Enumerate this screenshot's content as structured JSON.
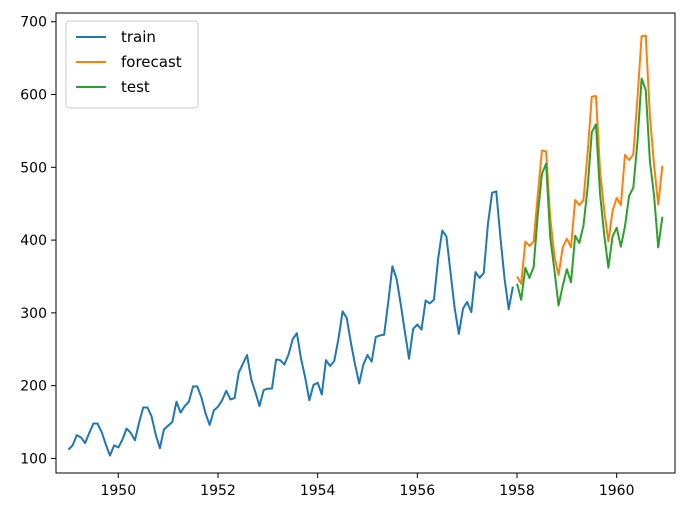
{
  "chart_data": {
    "type": "line",
    "title": "",
    "xlabel": "",
    "ylabel": "",
    "xlim": [
      1948.75,
      1961.17
    ],
    "ylim": [
      80,
      712
    ],
    "xticks": [
      1950,
      1952,
      1954,
      1956,
      1958,
      1960
    ],
    "xtick_labels": [
      "1950",
      "1952",
      "1954",
      "1956",
      "1958",
      "1960"
    ],
    "yticks": [
      100,
      200,
      300,
      400,
      500,
      600,
      700
    ],
    "ytick_labels": [
      "100",
      "200",
      "300",
      "400",
      "500",
      "600",
      "700"
    ],
    "grid": false,
    "legend_position": "top-left",
    "series": [
      {
        "name": "train",
        "color": "#1f77b4",
        "x_start": 1949.0,
        "x_step": 0.0833333,
        "values": [
          112,
          118,
          132,
          129,
          121,
          135,
          148,
          148,
          136,
          119,
          104,
          118,
          115,
          126,
          141,
          135,
          125,
          149,
          170,
          170,
          158,
          133,
          114,
          140,
          145,
          150,
          178,
          163,
          172,
          178,
          199,
          199,
          184,
          162,
          146,
          166,
          171,
          180,
          193,
          181,
          183,
          218,
          230,
          242,
          209,
          191,
          172,
          194,
          196,
          196,
          236,
          235,
          229,
          243,
          264,
          272,
          237,
          211,
          180,
          201,
          204,
          188,
          235,
          227,
          234,
          264,
          302,
          293,
          259,
          229,
          203,
          229,
          242,
          233,
          267,
          269,
          270,
          315,
          364,
          347,
          312,
          274,
          237,
          278,
          284,
          277,
          317,
          313,
          318,
          374,
          413,
          405,
          355,
          306,
          271,
          306,
          315,
          301,
          356,
          348,
          355,
          422,
          465,
          467,
          404,
          347,
          305,
          336
        ]
      },
      {
        "name": "forecast",
        "color": "#ff7f0e",
        "x_start": 1958.0,
        "x_step": 0.0833333,
        "values": [
          350,
          340,
          398,
          392,
          398,
          462,
          523,
          522,
          430,
          378,
          352,
          390,
          402,
          390,
          455,
          448,
          455,
          520,
          597,
          598,
          495,
          440,
          398,
          440,
          458,
          448,
          517,
          510,
          518,
          595,
          680,
          681,
          570,
          503,
          449,
          502
        ]
      },
      {
        "name": "test",
        "color": "#2ca02c",
        "x_start": 1958.0,
        "x_step": 0.0833333,
        "values": [
          340,
          318,
          362,
          348,
          363,
          435,
          491,
          505,
          404,
          359,
          310,
          337,
          360,
          342,
          406,
          396,
          420,
          472,
          548,
          559,
          463,
          407,
          362,
          405,
          417,
          391,
          419,
          461,
          472,
          535,
          622,
          606,
          508,
          461,
          390,
          432
        ]
      }
    ]
  }
}
